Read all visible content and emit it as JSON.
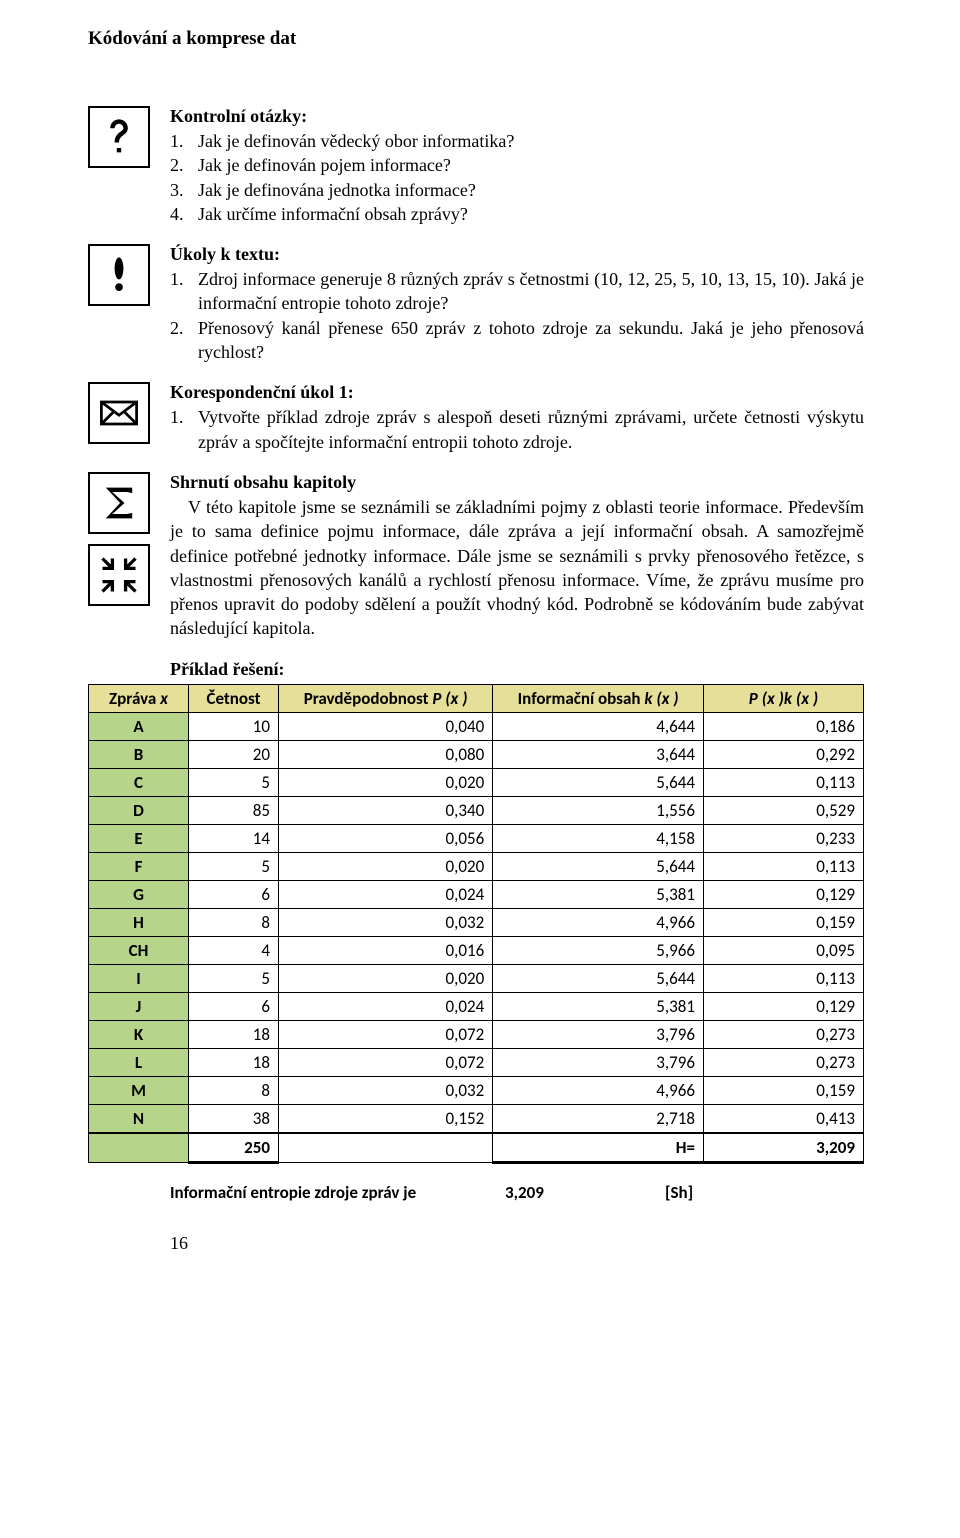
{
  "title": "Kódování a komprese dat",
  "questions": {
    "heading": "Kontrolní otázky:",
    "items": [
      {
        "n": "1.",
        "t": "Jak je definován vědecký obor informatika?"
      },
      {
        "n": "2.",
        "t": "Jak je definován pojem informace?"
      },
      {
        "n": "3.",
        "t": "Jak je definována jednotka informace?"
      },
      {
        "n": "4.",
        "t": "Jak určíme informační obsah zprávy?"
      }
    ]
  },
  "tasks": {
    "heading": "Úkoly k textu:",
    "items": [
      {
        "n": "1.",
        "t": "Zdroj informace generuje 8 různých zpráv s četnostmi (10, 12, 25, 5, 10, 13, 15, 10). Jaká je informační entropie tohoto zdroje?"
      },
      {
        "n": "2.",
        "t": "Přenosový kanál přenese 650 zpráv z tohoto zdroje za sekundu. Jaká je jeho přenosová rychlost?"
      }
    ]
  },
  "koresp": {
    "heading": "Korespondenční úkol 1:",
    "n": "1.",
    "t": "Vytvořte příklad zdroje zpráv s alespoň deseti různými zprávami, určete četnosti výskytu zpráv a spočítejte informační entropii tohoto zdroje."
  },
  "summary": {
    "heading": "Shrnutí obsahu kapitoly",
    "text": "V této kapitole jsme se seznámili se základními pojmy z oblasti teorie informace. Především je to sama definice pojmu informace, dále zpráva a její informační obsah. A samozřejmě definice potřebné jednotky informace. Dále jsme se seznámili s prvky přenosového řetězce, s vlastnostmi přenosových kanálů a rychlostí přenosu informace. Víme, že zprávu musíme pro přenos upravit do podoby sdělení a použít vhodný kód. Podrobně se kódováním bude zabývat následující kapitola."
  },
  "solution": {
    "heading": "Příklad řešení:"
  },
  "table": {
    "header_bg": "#e6df9a",
    "label_bg": "#b7d58a",
    "columns": [
      "Zpráva ",
      "Četnost",
      "Pravděpodobnost ",
      "Informační obsah ",
      ""
    ],
    "col_x": "x",
    "col_p": "P (x )",
    "col_k": "k (x )",
    "col_pk": "P (x )k (x )",
    "rows": [
      {
        "z": "A",
        "c": "10",
        "p": "0,040",
        "k": "4,644",
        "pk": "0,186"
      },
      {
        "z": "B",
        "c": "20",
        "p": "0,080",
        "k": "3,644",
        "pk": "0,292"
      },
      {
        "z": "C",
        "c": "5",
        "p": "0,020",
        "k": "5,644",
        "pk": "0,113"
      },
      {
        "z": "D",
        "c": "85",
        "p": "0,340",
        "k": "1,556",
        "pk": "0,529"
      },
      {
        "z": "E",
        "c": "14",
        "p": "0,056",
        "k": "4,158",
        "pk": "0,233"
      },
      {
        "z": "F",
        "c": "5",
        "p": "0,020",
        "k": "5,644",
        "pk": "0,113"
      },
      {
        "z": "G",
        "c": "6",
        "p": "0,024",
        "k": "5,381",
        "pk": "0,129"
      },
      {
        "z": "H",
        "c": "8",
        "p": "0,032",
        "k": "4,966",
        "pk": "0,159"
      },
      {
        "z": "CH",
        "c": "4",
        "p": "0,016",
        "k": "5,966",
        "pk": "0,095"
      },
      {
        "z": "I",
        "c": "5",
        "p": "0,020",
        "k": "5,644",
        "pk": "0,113"
      },
      {
        "z": "J",
        "c": "6",
        "p": "0,024",
        "k": "5,381",
        "pk": "0,129"
      },
      {
        "z": "K",
        "c": "18",
        "p": "0,072",
        "k": "3,796",
        "pk": "0,273"
      },
      {
        "z": "L",
        "c": "18",
        "p": "0,072",
        "k": "3,796",
        "pk": "0,273"
      },
      {
        "z": "M",
        "c": "8",
        "p": "0,032",
        "k": "4,966",
        "pk": "0,159"
      },
      {
        "z": "N",
        "c": "38",
        "p": "0,152",
        "k": "2,718",
        "pk": "0,413"
      }
    ],
    "total_c": "250",
    "total_hlabel": "H=",
    "total_h": "3,209"
  },
  "footer": {
    "label": "Informační entropie zdroje zpráv je",
    "value": "3,209",
    "unit": "[Sh]"
  },
  "page_number": "16"
}
